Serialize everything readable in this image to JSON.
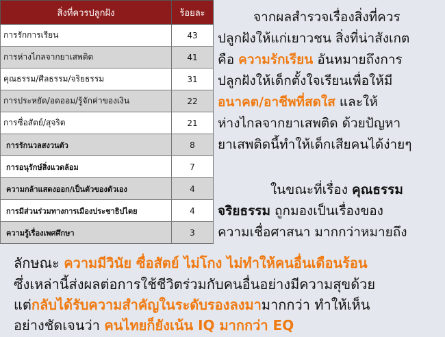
{
  "table": {
    "header": [
      "สิ่งที่ควรปลูกฝัง",
      "ร้อยละ"
    ],
    "rows": [
      [
        "การรักการเรียน",
        "43"
      ],
      [
        "การห่างไกลจากยาเสพติด",
        "41"
      ],
      [
        "คุณธรรม/ศีลธรรม/จริยธรรม",
        "31"
      ],
      [
        "การประหยัด/อดออม/รู้จักค่าของเงิน",
        "22"
      ],
      [
        "การซื่อสัตย์/สุจริต",
        "21"
      ],
      [
        "การรักนวลสงวนตัว",
        "8"
      ],
      [
        "การอนุรักษ์สิ่งแวดล้อม",
        "7"
      ],
      [
        "ความกล้าแสดงออก/เป็นตัวของตัวเอง",
        "4"
      ],
      [
        "การมีส่วนร่วมทางการเมืองประชาธิปไตย",
        "4"
      ],
      [
        "ความรู้เรื่องเพศศึกษา",
        "3"
      ]
    ]
  },
  "paragraphs": [
    {
      "lines": [
        {
          "segments": [
            {
              "text": "จากผลสำรวจเรื่องสิ่งที่ควร"
            }
          ]
        },
        {
          "segments": [
            {
              "text": "ปลูกฝังให้แก่เยาวชน สิ่งที่น่าสังเกต"
            }
          ]
        },
        {
          "segments": [
            {
              "text": "คือ "
            },
            {
              "text": "ความรักเรียน",
              "emphasis": "orange"
            },
            {
              "text": " อันหมายถึงการ"
            }
          ]
        },
        {
          "segments": [
            {
              "text": "ปลูกฝังให้เด็กตั้งใจเรียนเพื่อให้มี"
            }
          ]
        },
        {
          "segments": [
            {
              "text": "อนาคต/อาชีพที่สดใส",
              "emphasis": "orange"
            },
            {
              "text": " และให้"
            }
          ]
        },
        {
          "segments": [
            {
              "text": "ห่างไกลจากยาเสพติด ด้วยปัญหา"
            }
          ]
        },
        {
          "segments": [
            {
              "text": "ยาเสพติดนี้ทำให้เด็กเสียคนได้ง่ายๆ"
            }
          ]
        }
      ]
    },
    {
      "lines": [
        {
          "segments": [
            {
              "text": "ในขณะที่เรื่อง "
            },
            {
              "text": "คุณธรรม",
              "emphasis": "bold"
            }
          ]
        },
        {
          "segments": [
            {
              "text": "จริยธรรม",
              "emphasis": "bold"
            },
            {
              "text": " ถูกมองเป็นเรื่องของ"
            }
          ]
        },
        {
          "segments": [
            {
              "text": "ความเชื่อศาสนา มากกว่าหมายถึง"
            }
          ]
        },
        {
          "segments": [
            {
              "text": "ลักษณะ "
            },
            {
              "text": "ความมีวินัย ซื่อสัตย์ ไม่โกง ไม่ทำให้คนอื่นเดือนร้อน",
              "emphasis": "orange"
            }
          ]
        },
        {
          "segments": [
            {
              "text": "ซึ่งเหล่านี้ส่งผลต่อการใช้ชีวิตร่วมกับคนอื่นอย่างมีความสุขด้วย"
            }
          ]
        },
        {
          "segments": [
            {
              "text": "แต่"
            },
            {
              "text": "กลับได้รับความสำคัญในระดับรองลงมา",
              "emphasis": "orange"
            },
            {
              "text": "มากกว่า ทำให้เห็น"
            }
          ]
        },
        {
          "segments": [
            {
              "text": "อย่างชัดเจนว่า "
            },
            {
              "text": "คนไทยก็ยังเน้น IQ มากกว่า EQ",
              "emphasis": "orange"
            }
          ]
        }
      ]
    }
  ]
}
